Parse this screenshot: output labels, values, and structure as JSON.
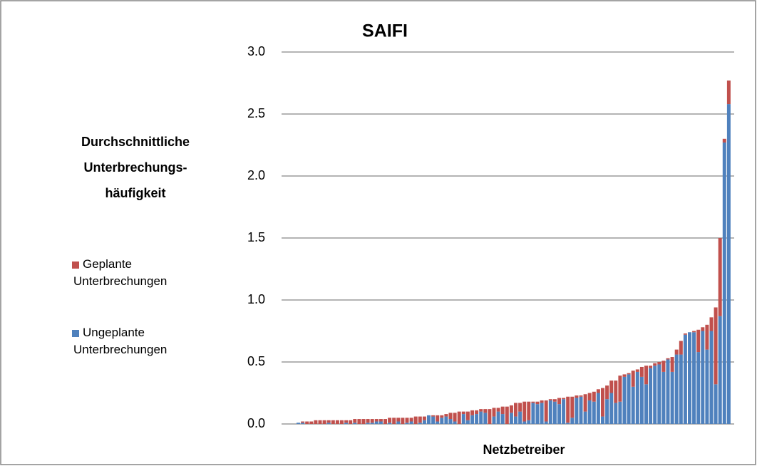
{
  "chart_data": {
    "type": "stacked_bar",
    "title": "SAIFI",
    "y_label": "Durchschnittliche Unterbrechungs-häufigkeit",
    "x_label": "Netzbetreiber",
    "categories": [
      null,
      null,
      null,
      null,
      null,
      null,
      null,
      null,
      null,
      null,
      null,
      null,
      null,
      null,
      null,
      null,
      null,
      null,
      null,
      null,
      null,
      null,
      null,
      null,
      null,
      null,
      null,
      null,
      null,
      null,
      null,
      null,
      null,
      null,
      null,
      null,
      null,
      null,
      null,
      null,
      null,
      null,
      null,
      null,
      null,
      null,
      null,
      null,
      null,
      null,
      null,
      null,
      null,
      null,
      null,
      null,
      null,
      null,
      null,
      null,
      null,
      null,
      null,
      null,
      null,
      null,
      null,
      null,
      null,
      null,
      null,
      null,
      null,
      null,
      null,
      null,
      null,
      null,
      null,
      null,
      null,
      null,
      null,
      null,
      null,
      null,
      null,
      null,
      null,
      null,
      null,
      null,
      null,
      null,
      null,
      null,
      null,
      null,
      null,
      null
    ],
    "series": [
      {
        "name": "Ungeplante Unterbrechungen",
        "color": "#4f81bd",
        "values": [
          0.01,
          0.01,
          0,
          0,
          0,
          0,
          0,
          0.01,
          0,
          0,
          0,
          0.01,
          0,
          0.01,
          0,
          0,
          0.01,
          0.01,
          0.02,
          0.02,
          0,
          0.01,
          0,
          0.02,
          0,
          0.01,
          0.02,
          0,
          0.01,
          0.03,
          0.07,
          0.06,
          0.02,
          0.05,
          0.06,
          0.04,
          0.02,
          0,
          0.08,
          0.03,
          0.07,
          0.08,
          0.1,
          0.09,
          0,
          0.06,
          0.1,
          0.08,
          0,
          0.09,
          0.06,
          0.1,
          0.02,
          0.03,
          0.17,
          0.16,
          0.17,
          0.02,
          0.19,
          0.18,
          0.16,
          0.2,
          0.01,
          0.05,
          0.21,
          0.22,
          0.1,
          0.19,
          0.18,
          0.25,
          0.06,
          0.2,
          0.25,
          0.17,
          0.18,
          0.38,
          0.4,
          0.3,
          0.42,
          0.38,
          0.32,
          0.45,
          0.47,
          0.48,
          0.42,
          0.52,
          0.42,
          0.56,
          0.56,
          0.72,
          0.74,
          0.74,
          0.58,
          0.75,
          0.6,
          0.75,
          0.32,
          0.87,
          2.27,
          2.58
        ]
      },
      {
        "name": "Geplante Unterbrechungen",
        "color": "#c0504d",
        "values": [
          0,
          0.01,
          0.02,
          0.02,
          0.03,
          0.03,
          0.03,
          0.02,
          0.03,
          0.03,
          0.03,
          0.02,
          0.03,
          0.03,
          0.04,
          0.04,
          0.03,
          0.03,
          0.02,
          0.02,
          0.04,
          0.04,
          0.05,
          0.03,
          0.05,
          0.04,
          0.03,
          0.06,
          0.05,
          0.03,
          0,
          0.01,
          0.05,
          0.02,
          0.02,
          0.05,
          0.07,
          0.1,
          0.02,
          0.07,
          0.04,
          0.03,
          0.02,
          0.03,
          0.12,
          0.07,
          0.03,
          0.06,
          0.14,
          0.06,
          0.11,
          0.07,
          0.16,
          0.15,
          0.01,
          0.02,
          0.02,
          0.17,
          0.01,
          0.02,
          0.05,
          0.01,
          0.21,
          0.17,
          0.02,
          0.01,
          0.14,
          0.06,
          0.08,
          0.03,
          0.23,
          0.11,
          0.1,
          0.18,
          0.21,
          0.02,
          0.01,
          0.13,
          0.02,
          0.08,
          0.15,
          0.02,
          0.02,
          0.02,
          0.09,
          0.01,
          0.12,
          0.04,
          0.11,
          0.01,
          0,
          0.01,
          0.18,
          0.03,
          0.2,
          0.11,
          0.62,
          0.63,
          0.03,
          0.19
        ]
      }
    ],
    "ylim": [
      0,
      3
    ],
    "yticks": [
      {
        "value": 0,
        "label": "0.0"
      },
      {
        "value": 0.5,
        "label": "0.5"
      },
      {
        "value": 1,
        "label": "1.0"
      },
      {
        "value": 1.5,
        "label": "1.5"
      },
      {
        "value": 2,
        "label": "2.0"
      },
      {
        "value": 2.5,
        "label": "2.5"
      },
      {
        "value": 3,
        "label": "3.0"
      }
    ],
    "grid": true,
    "legend": "left"
  }
}
